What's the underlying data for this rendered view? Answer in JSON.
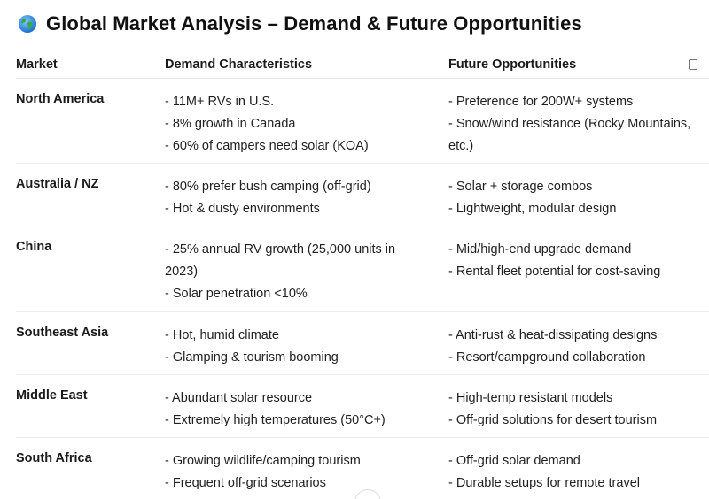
{
  "title": "Global Market Analysis – Demand & Future Opportunities",
  "icons": {
    "title_icon": "globe-icon",
    "copy_icon": "copy-icon"
  },
  "table": {
    "headers": [
      "Market",
      "Demand Characteristics",
      "Future Opportunities"
    ],
    "rows": [
      {
        "market": "North America",
        "demand": [
          "- 11M+ RVs in U.S.",
          "- 8% growth in Canada",
          "- 60% of campers need solar (KOA)"
        ],
        "opportunities": [
          "- Preference for 200W+ systems",
          "- Snow/wind resistance (Rocky Mountains,",
          "etc.)"
        ]
      },
      {
        "market": "Australia / NZ",
        "demand": [
          "- 80% prefer bush camping (off-grid)",
          "- Hot & dusty environments"
        ],
        "opportunities": [
          "- Solar + storage combos",
          "- Lightweight, modular design"
        ]
      },
      {
        "market": "China",
        "demand": [
          "- 25% annual RV growth (25,000 units in",
          "2023)",
          "- Solar penetration <10%"
        ],
        "opportunities": [
          "- Mid/high-end upgrade demand",
          "- Rental fleet potential for cost-saving"
        ]
      },
      {
        "market": "Southeast Asia",
        "demand": [
          "- Hot, humid climate",
          "- Glamping & tourism booming"
        ],
        "opportunities": [
          "- Anti-rust & heat-dissipating designs",
          "- Resort/campground collaboration"
        ]
      },
      {
        "market": "Middle East",
        "demand": [
          "- Abundant solar resource",
          "- Extremely high temperatures (50°C+)"
        ],
        "opportunities": [
          "- High-temp resistant models",
          "- Off-grid solutions for desert tourism"
        ]
      },
      {
        "market": "South Africa",
        "demand": [
          "- Growing wildlife/camping tourism",
          "- Frequent off-grid scenarios"
        ],
        "opportunities": [
          "- Off-grid solar demand",
          "- Durable setups for remote travel"
        ]
      }
    ]
  }
}
